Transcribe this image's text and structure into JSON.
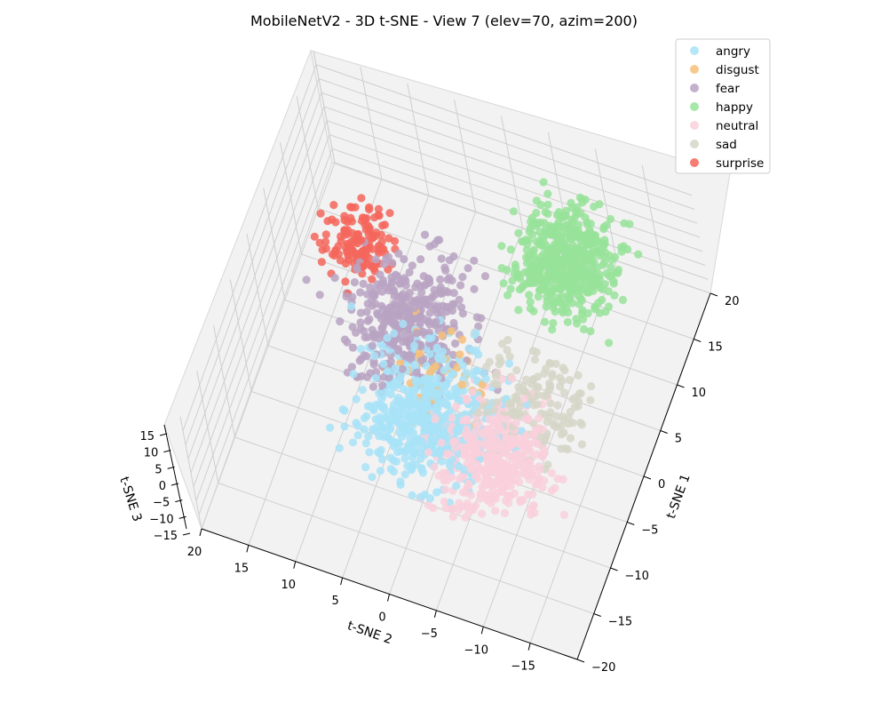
{
  "chart_data": {
    "type": "scatter",
    "title": "MobileNetV2 - 3D t-SNE - View 7 (elev=70, azim=200)",
    "xlabel": "t-SNE 1",
    "ylabel": "t-SNE 2",
    "zlabel": "t-SNE 3",
    "view": {
      "elev": 70,
      "azim": 200
    },
    "x_ticks": [
      -20,
      -15,
      -10,
      -5,
      0,
      5,
      10,
      15,
      20
    ],
    "y_ticks": [
      -15,
      -10,
      -5,
      0,
      5,
      10,
      15,
      20
    ],
    "z_ticks": [
      -15,
      -10,
      -5,
      0,
      5,
      10,
      15
    ],
    "x_tick_labels": [
      "−20",
      "−15",
      "−10",
      "−5",
      "0",
      "5",
      "10",
      "15",
      "20"
    ],
    "y_tick_labels": [
      "−15",
      "−10",
      "−5",
      "0",
      "5",
      "10",
      "15",
      "20"
    ],
    "z_tick_labels": [
      "−15",
      "−10",
      "−5",
      "0",
      "5",
      "10",
      "15"
    ],
    "grid": true,
    "legend_position": "top-right",
    "series": [
      {
        "name": "angry",
        "color": "#a8e3f8",
        "cluster": {
          "t_sne_1": -6,
          "t_sne_2": 0,
          "t_sne_3": 0
        },
        "spread": 8
      },
      {
        "name": "disgust",
        "color": "#f6c07a",
        "cluster": {
          "t_sne_1": -3,
          "t_sne_2": 0,
          "t_sne_3": 0
        },
        "spread": 6
      },
      {
        "name": "fear",
        "color": "#b8a3c3",
        "cluster": {
          "t_sne_1": 2,
          "t_sne_2": 5,
          "t_sne_3": 0
        },
        "spread": 8
      },
      {
        "name": "happy",
        "color": "#98e39a",
        "cluster": {
          "t_sne_1": 13,
          "t_sne_2": -8,
          "t_sne_3": 0
        },
        "spread": 6
      },
      {
        "name": "neutral",
        "color": "#f9d0dc",
        "cluster": {
          "t_sne_1": -8,
          "t_sne_2": -8,
          "t_sne_3": 0
        },
        "spread": 7
      },
      {
        "name": "sad",
        "color": "#d6d6c8",
        "cluster": {
          "t_sne_1": -2,
          "t_sne_2": -10,
          "t_sne_3": 0
        },
        "spread": 7
      },
      {
        "name": "surprise",
        "color": "#f4665c",
        "cluster": {
          "t_sne_1": 8,
          "t_sne_2": 12,
          "t_sne_3": 0
        },
        "spread": 4
      }
    ]
  }
}
